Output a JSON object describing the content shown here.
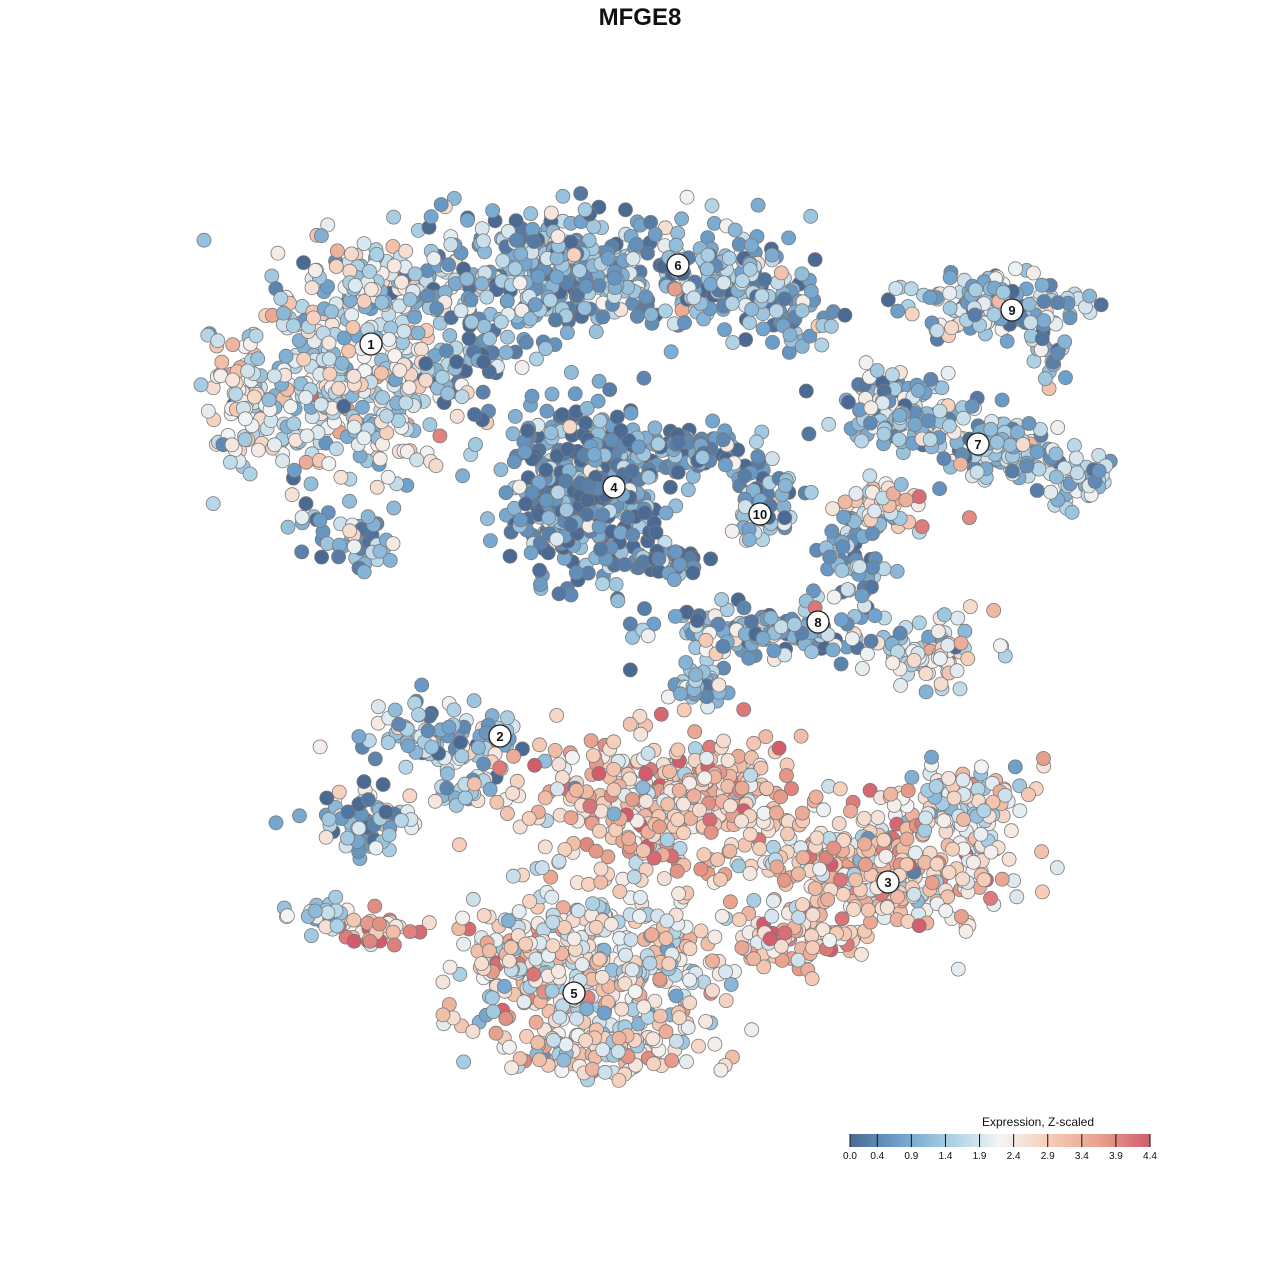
{
  "chart_data": {
    "type": "scatter",
    "title": "MFGE8",
    "xlabel": "",
    "ylabel": "",
    "grid": false,
    "color_scale": {
      "title": "Expression, Z-scaled",
      "min": 0.0,
      "max": 4.4,
      "ticks": [
        "0.0",
        "0.4",
        "0.9",
        "1.4",
        "1.9",
        "2.4",
        "2.9",
        "3.4",
        "3.9",
        "4.4"
      ],
      "palette": [
        "#4a6a94",
        "#6ea1cc",
        "#a9cfe4",
        "#f4f4f4",
        "#f6cdb7",
        "#e8a08c",
        "#d25c6c"
      ],
      "legend_position": "bottom-right"
    },
    "clusters": [
      {
        "label": "1",
        "mean_expression": 1.9
      },
      {
        "label": "2",
        "mean_expression": 1.2
      },
      {
        "label": "3",
        "mean_expression": 2.7
      },
      {
        "label": "4",
        "mean_expression": 0.5
      },
      {
        "label": "5",
        "mean_expression": 2.3
      },
      {
        "label": "6",
        "mean_expression": 1.0
      },
      {
        "label": "7",
        "mean_expression": 1.3
      },
      {
        "label": "8",
        "mean_expression": 0.9
      },
      {
        "label": "9",
        "mean_expression": 1.3
      },
      {
        "label": "10",
        "mean_expression": 1.2
      }
    ]
  }
}
